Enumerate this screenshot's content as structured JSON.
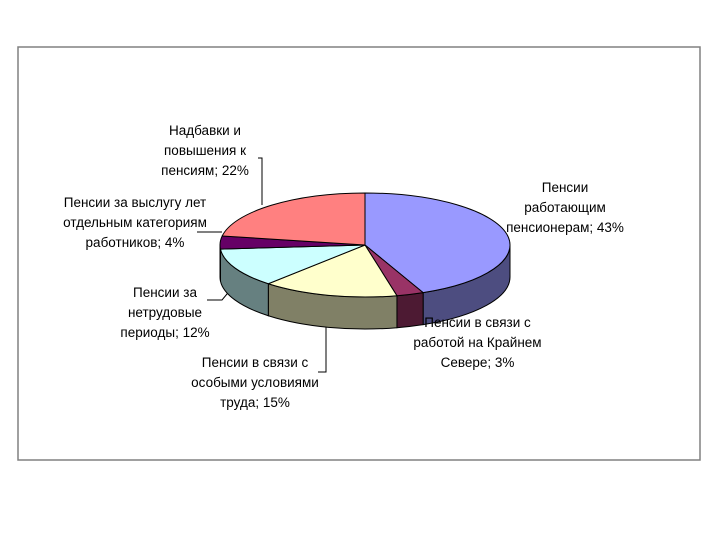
{
  "chart_data": {
    "type": "pie3d",
    "values": [
      43,
      3,
      15,
      12,
      4,
      22
    ],
    "value_labels": [
      "Пенсии работающим пенсионерам; 43%",
      "Пенсии в связи с работой на Крайнем Севере; 3%",
      "Пенсии в связи с особыми условиями труда; 15%",
      "Пенсии за нетрудовые периоды; 12%",
      "Пенсии за выслугу лет отдельным категориям работников; 4%",
      "Надбавки и повышения к пенсиям; 22%"
    ],
    "colors": [
      "#9999ff",
      "#993366",
      "#ffffcc",
      "#ccffff",
      "#660066",
      "#ff8080"
    ]
  }
}
